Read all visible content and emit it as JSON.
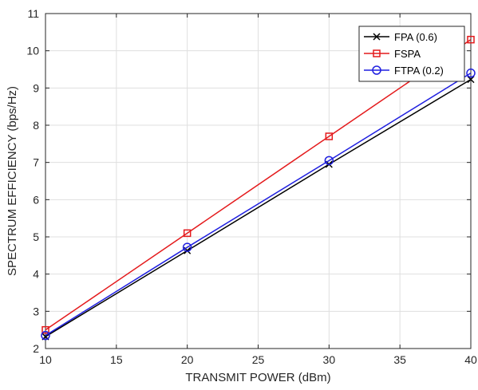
{
  "chart_data": {
    "type": "line",
    "title": "",
    "xlabel": "TRANSMIT POWER (dBm)",
    "ylabel": "SPECTRUM EFFICIENCY (bps/Hz)",
    "xlim": [
      10,
      40
    ],
    "ylim": [
      2,
      11
    ],
    "xticks": [
      "10",
      "15",
      "20",
      "25",
      "30",
      "35",
      "40"
    ],
    "yticks": [
      "2",
      "3",
      "4",
      "5",
      "6",
      "7",
      "8",
      "9",
      "10",
      "11"
    ],
    "grid": true,
    "legend_position": "top-right",
    "x": [
      10,
      20,
      30,
      40
    ],
    "series": [
      {
        "name": "FPA (0.6)",
        "values": [
          2.32,
          4.63,
          6.95,
          9.23
        ],
        "color": "#000000",
        "marker": "x"
      },
      {
        "name": "FSPA",
        "values": [
          2.5,
          5.1,
          7.7,
          10.3
        ],
        "color": "#e41a1c",
        "marker": "square"
      },
      {
        "name": "FTPA (0.2)",
        "values": [
          2.35,
          4.72,
          7.05,
          9.4
        ],
        "color": "#1f1fe0",
        "marker": "circle"
      }
    ]
  }
}
